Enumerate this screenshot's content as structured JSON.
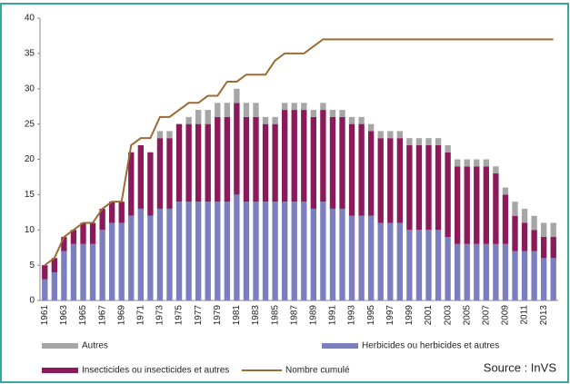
{
  "chart_data": {
    "type": "bar",
    "stacked": true,
    "categories": [
      "1961",
      null,
      "1963",
      null,
      "1965",
      null,
      "1967",
      null,
      "1969",
      null,
      "1971",
      null,
      "1973",
      null,
      "1975",
      null,
      "1977",
      null,
      "1979",
      null,
      "1981",
      null,
      "1983",
      null,
      "1985",
      null,
      "1987",
      null,
      "1989",
      null,
      "1991",
      null,
      "1993",
      null,
      "1995",
      null,
      "1997",
      null,
      "1999",
      null,
      "2001",
      null,
      "2003",
      null,
      "2005",
      null,
      "2007",
      null,
      "2009",
      null,
      "2011",
      null,
      "2013",
      null
    ],
    "series": [
      {
        "name": "Herbicides ou herbicides et autres",
        "color": "#7b7fbf",
        "type": "bar",
        "values": [
          3,
          4,
          7,
          8,
          8,
          8,
          10,
          11,
          11,
          12,
          13,
          12,
          13,
          13,
          14,
          14,
          14,
          14,
          14,
          14,
          15,
          14,
          14,
          14,
          14,
          14,
          14,
          14,
          13,
          14,
          13,
          13,
          12,
          12,
          12,
          11,
          11,
          11,
          10,
          10,
          10,
          10,
          9,
          8,
          8,
          8,
          8,
          8,
          8,
          7,
          7,
          7,
          6,
          6
        ]
      },
      {
        "name": "Insecticides ou insecticides et autres",
        "color": "#8b1a5a",
        "type": "bar",
        "values": [
          2,
          2,
          2,
          2,
          3,
          3,
          3,
          3,
          3,
          9,
          9,
          9,
          10,
          10,
          11,
          11,
          11,
          11,
          12,
          12,
          13,
          12,
          12,
          11,
          11,
          13,
          13,
          13,
          13,
          13,
          13,
          13,
          13,
          13,
          12,
          12,
          12,
          12,
          12,
          12,
          12,
          12,
          12,
          11,
          11,
          11,
          11,
          10,
          7,
          5,
          4,
          3,
          3,
          3
        ]
      },
      {
        "name": "Autres",
        "color": "#a6a6a6",
        "type": "bar",
        "values": [
          0,
          0,
          0,
          0,
          0,
          0,
          0,
          0,
          0,
          0,
          0,
          0,
          1,
          1,
          0,
          1,
          2,
          2,
          2,
          2,
          2,
          2,
          2,
          1,
          1,
          1,
          1,
          1,
          1,
          1,
          1,
          1,
          1,
          1,
          1,
          1,
          1,
          1,
          1,
          1,
          1,
          1,
          1,
          1,
          1,
          1,
          1,
          1,
          1,
          2,
          2,
          2,
          2,
          2
        ]
      },
      {
        "name": "Nombre cumulé",
        "color": "#9b6b35",
        "type": "line",
        "values": [
          5,
          6,
          9,
          10,
          11,
          11,
          13,
          14,
          14,
          22,
          23,
          23,
          26,
          26,
          27,
          28,
          28,
          29,
          29,
          31,
          31,
          32,
          32,
          32,
          34,
          35,
          35,
          35,
          36,
          37,
          37,
          37,
          37,
          37,
          37,
          37,
          37,
          37,
          37,
          37,
          37,
          37,
          37,
          37,
          37,
          37,
          37,
          37,
          37,
          37,
          37,
          37,
          37,
          37
        ]
      }
    ],
    "ylim": [
      0,
      40
    ],
    "yticks": [
      0,
      5,
      10,
      15,
      20,
      25,
      30,
      35,
      40
    ],
    "grid": false,
    "source": "Source : InVS"
  }
}
